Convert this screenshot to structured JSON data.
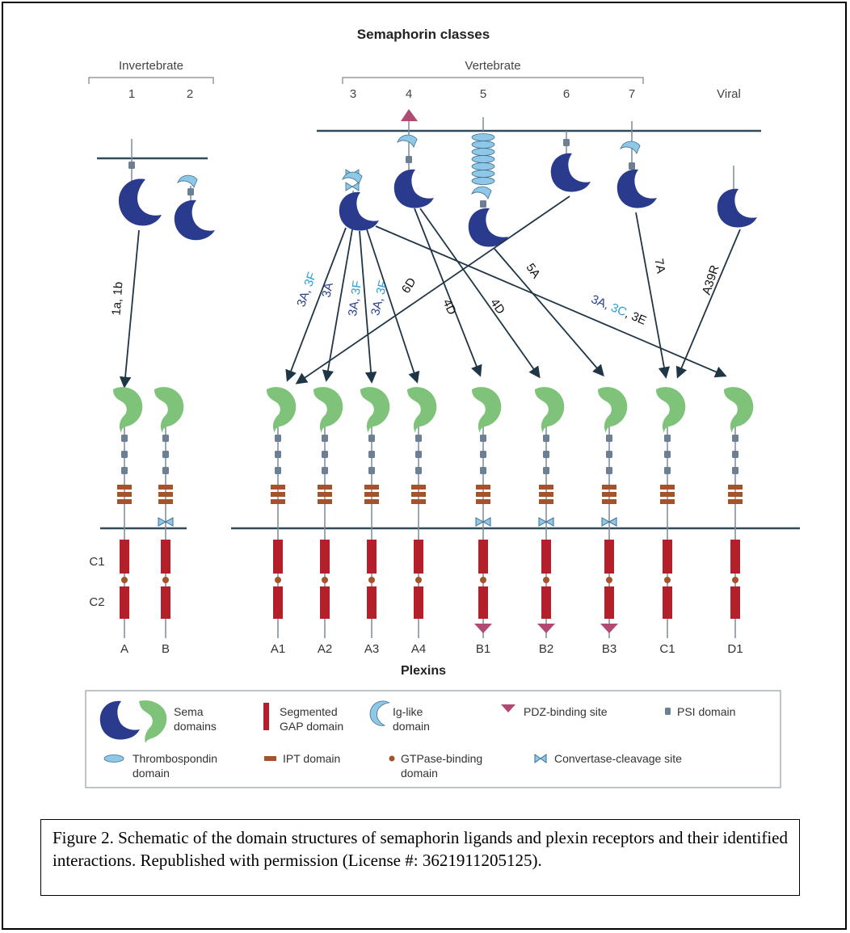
{
  "figure_title": "Semaphorin classes",
  "groups": {
    "invertebrate": "Invertebrate",
    "vertebrate": "Vertebrate",
    "viral": "Viral"
  },
  "semaphorin_class_labels": [
    "1",
    "2",
    "3",
    "4",
    "5",
    "6",
    "7"
  ],
  "plexins_title": "Plexins",
  "plexin_labels": [
    "A",
    "B",
    "A1",
    "A2",
    "A3",
    "A4",
    "B1",
    "B2",
    "B3",
    "C1",
    "D1"
  ],
  "gap_labels": [
    "C1",
    "C2"
  ],
  "interaction_labels": {
    "inv": "1a, 1b",
    "s3_a1": [
      "3A, ",
      "3F"
    ],
    "s3_a2": "3A",
    "s3_a3": [
      "3A, ",
      "3F"
    ],
    "s3_a4": [
      "3A, ",
      "3F"
    ],
    "s6_a1": "6D",
    "s4_b1": "4D",
    "s4_b2": "4D",
    "s5_b3": "5A",
    "s3_d1": [
      "3A, ",
      "3C",
      ", 3E"
    ],
    "s7_c1": "7A",
    "viral_c1": "A39R"
  },
  "legend": {
    "sema": [
      "Sema",
      "domains"
    ],
    "gap": [
      "Segmented",
      "GAP domain"
    ],
    "ig": [
      "Ig-like",
      "domain"
    ],
    "pdz": "PDZ-binding site",
    "psi": "PSI domain",
    "tsp": [
      "Thrombospondin",
      "domain"
    ],
    "ipt": "IPT domain",
    "gtpase": [
      "GTPase-binding",
      "domain"
    ],
    "convertase": "Convertase-cleavage site"
  },
  "caption": "Figure 2. Schematic of the domain structures of semaphorin ligands and plexin receptors and their identified interactions. Republished with permission (License #: 3621911205125).",
  "colors": {
    "sema_ligand": "#2a3a8c",
    "sema_receptor": "#7fc27a",
    "gap": "#b3202a",
    "ig": "#8fc8e6",
    "psi": "#6d7f93",
    "ipt": "#a4532a",
    "pdz": "#b04a72",
    "membrane": "#2f4c5e",
    "label_dark_blue": "#2b3f8e",
    "label_light_blue": "#2a9fd6"
  }
}
